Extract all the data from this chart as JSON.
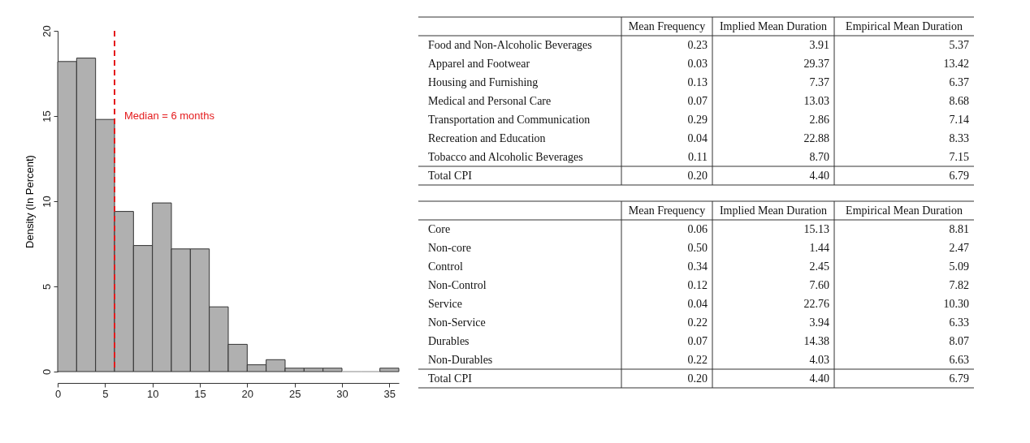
{
  "chart_data": [
    {
      "type": "histogram",
      "ylabel": "Density (In Percent)",
      "bins": [
        0,
        2,
        4,
        6,
        8,
        10,
        12,
        14,
        16,
        18,
        20,
        22,
        24,
        26,
        28,
        30,
        32,
        34,
        36
      ],
      "values": [
        18.2,
        18.4,
        14.8,
        9.4,
        7.4,
        9.9,
        7.2,
        7.2,
        3.8,
        1.6,
        0.4,
        0.7,
        0.2,
        0.2,
        0.2,
        0,
        0,
        0.2
      ],
      "color": "#b0b0b0",
      "xlim": [
        0,
        36
      ],
      "xticks": [
        0,
        5,
        10,
        15,
        20,
        25,
        30,
        35
      ],
      "ylim": [
        0,
        20
      ],
      "yticks": [
        0,
        5,
        10,
        15,
        20
      ],
      "grid": false,
      "ref_lines": [
        {
          "axis": "x",
          "value": 6,
          "label": "Median = 6 months",
          "color": "#e41a1c",
          "line_style": "dashed"
        }
      ]
    },
    {
      "type": "other",
      "data_labels": true,
      "categories": [
        "Mean Frequency",
        "Implied Mean Duration",
        "Empirical Mean Duration"
      ],
      "y_categories": [
        "Food and Non-Alcoholic Beverages",
        "Apparel and Footwear",
        "Housing and Furnishing",
        "Medical and Personal Care",
        "Transportation and Communication",
        "Recreation and Education",
        "Tobacco and Alcoholic Beverages",
        "Total CPI"
      ],
      "cell_labels": [
        [
          "0.23",
          "3.91",
          "5.37"
        ],
        [
          "0.03",
          "29.37",
          "13.42"
        ],
        [
          "0.13",
          "7.37",
          "6.37"
        ],
        [
          "0.07",
          "13.03",
          "8.68"
        ],
        [
          "0.29",
          "2.86",
          "7.14"
        ],
        [
          "0.04",
          "22.88",
          "8.33"
        ],
        [
          "0.11",
          "8.70",
          "7.15"
        ],
        [
          "0.20",
          "4.40",
          "6.79"
        ]
      ]
    },
    {
      "type": "other",
      "data_labels": true,
      "categories": [
        "Mean Frequency",
        "Implied Mean Duration",
        "Empirical Mean Duration"
      ],
      "y_categories": [
        "Core",
        "Non-core",
        "Control",
        "Non-Control",
        "Service",
        "Non-Service",
        "Durables",
        "Non-Durables",
        "Total CPI"
      ],
      "cell_labels": [
        [
          "0.06",
          "15.13",
          "8.81"
        ],
        [
          "0.50",
          "1.44",
          "2.47"
        ],
        [
          "0.34",
          "2.45",
          "5.09"
        ],
        [
          "0.12",
          "7.60",
          "7.82"
        ],
        [
          "0.04",
          "22.76",
          "10.30"
        ],
        [
          "0.22",
          "3.94",
          "6.33"
        ],
        [
          "0.07",
          "14.38",
          "8.07"
        ],
        [
          "0.22",
          "4.03",
          "6.63"
        ],
        [
          "0.20",
          "4.40",
          "6.79"
        ]
      ]
    }
  ]
}
